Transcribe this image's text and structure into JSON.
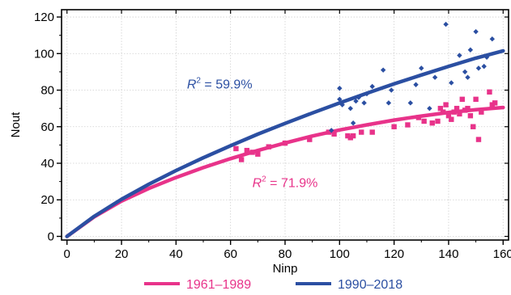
{
  "chart_data": {
    "type": "scatter",
    "xlabel": "Ninp",
    "ylabel": "Nout",
    "xlim": [
      -2,
      162
    ],
    "ylim": [
      -2,
      124
    ],
    "xticks": [
      0,
      20,
      40,
      60,
      80,
      100,
      120,
      140,
      160
    ],
    "yticks": [
      0,
      20,
      40,
      60,
      80,
      100,
      120
    ],
    "grid": true,
    "legend_position": "bottom",
    "series": [
      {
        "name": "1961–1989",
        "color": "#e8338a",
        "marker": "square",
        "points": [
          [
            62,
            48
          ],
          [
            64,
            42
          ],
          [
            66,
            47
          ],
          [
            68,
            46
          ],
          [
            70,
            45
          ],
          [
            74,
            49
          ],
          [
            80,
            51
          ],
          [
            89,
            53
          ],
          [
            96,
            57
          ],
          [
            98,
            56
          ],
          [
            103,
            55
          ],
          [
            104,
            54
          ],
          [
            105,
            55
          ],
          [
            108,
            57
          ],
          [
            112,
            57
          ],
          [
            120,
            60
          ],
          [
            125,
            61
          ],
          [
            129,
            65
          ],
          [
            131,
            63
          ],
          [
            134,
            62
          ],
          [
            136,
            63
          ],
          [
            137,
            70
          ],
          [
            138,
            68
          ],
          [
            139,
            72
          ],
          [
            140,
            66
          ],
          [
            141,
            64
          ],
          [
            142,
            68
          ],
          [
            143,
            70
          ],
          [
            144,
            67
          ],
          [
            145,
            75
          ],
          [
            146,
            69
          ],
          [
            147,
            70
          ],
          [
            148,
            66
          ],
          [
            149,
            60
          ],
          [
            150,
            75
          ],
          [
            151,
            53
          ],
          [
            152,
            68
          ],
          [
            155,
            79
          ],
          [
            156,
            72
          ],
          [
            157,
            73
          ]
        ],
        "fit": [
          [
            0,
            0
          ],
          [
            10,
            10.7
          ],
          [
            20,
            19.3
          ],
          [
            30,
            26.2
          ],
          [
            40,
            32.2
          ],
          [
            50,
            37.6
          ],
          [
            60,
            42.5
          ],
          [
            70,
            47.0
          ],
          [
            80,
            51.1
          ],
          [
            90,
            54.9
          ],
          [
            100,
            58.2
          ],
          [
            110,
            61.0
          ],
          [
            120,
            63.6
          ],
          [
            130,
            65.8
          ],
          [
            140,
            67.8
          ],
          [
            150,
            69.3
          ],
          [
            160,
            70.5
          ]
        ]
      },
      {
        "name": "1990–2018",
        "color": "#2b4fa2",
        "marker": "diamond",
        "points": [
          [
            97,
            58
          ],
          [
            100,
            81
          ],
          [
            100,
            75
          ],
          [
            101,
            72
          ],
          [
            104,
            70
          ],
          [
            105,
            62
          ],
          [
            106,
            74
          ],
          [
            107,
            76
          ],
          [
            109,
            73
          ],
          [
            110,
            78
          ],
          [
            112,
            82
          ],
          [
            116,
            91
          ],
          [
            118,
            73
          ],
          [
            119,
            80
          ],
          [
            126,
            73
          ],
          [
            128,
            83
          ],
          [
            130,
            92
          ],
          [
            133,
            70
          ],
          [
            135,
            87
          ],
          [
            139,
            116
          ],
          [
            141,
            84
          ],
          [
            144,
            99
          ],
          [
            146,
            90
          ],
          [
            147,
            87
          ],
          [
            148,
            102
          ],
          [
            150,
            112
          ],
          [
            151,
            92
          ],
          [
            153,
            93
          ],
          [
            154,
            98
          ],
          [
            156,
            108
          ]
        ],
        "fit": [
          [
            0,
            0
          ],
          [
            10,
            11.0
          ],
          [
            20,
            20.3
          ],
          [
            30,
            28.5
          ],
          [
            40,
            36.0
          ],
          [
            50,
            43.0
          ],
          [
            60,
            49.6
          ],
          [
            70,
            55.9
          ],
          [
            80,
            61.8
          ],
          [
            90,
            67.5
          ],
          [
            100,
            73.0
          ],
          [
            110,
            78.3
          ],
          [
            120,
            83.4
          ],
          [
            130,
            88.3
          ],
          [
            140,
            93.0
          ],
          [
            150,
            97.5
          ],
          [
            160,
            101.5
          ]
        ]
      }
    ],
    "annotations": [
      {
        "label": "R",
        "sup": "2",
        "text": " = 59.9%",
        "color": "#2b4fa2",
        "x": 44,
        "y": 81
      },
      {
        "label": "R",
        "sup": "2",
        "text": " = 71.9%",
        "color": "#e8338a",
        "x": 68,
        "y": 27
      }
    ]
  }
}
